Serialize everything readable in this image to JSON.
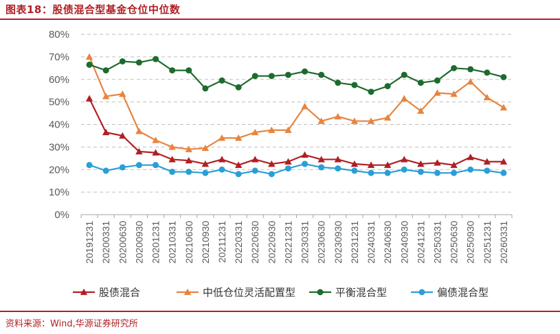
{
  "title": "图表18：股债混合型基金仓位中位数",
  "source": "资料来源：Wind,华源证券研究所",
  "chart_data": {
    "type": "line",
    "categories": [
      "20191231",
      "20200331",
      "20200630",
      "20200930",
      "20201231",
      "20210331",
      "20210630",
      "20210930",
      "20211231",
      "20220331",
      "20220630",
      "20220930",
      "20221231",
      "20230331",
      "20230630",
      "20230930",
      "20231231",
      "20240331",
      "20240630",
      "20240930",
      "20241231",
      "20250331",
      "20250630",
      "20250930",
      "20251231",
      "20260331"
    ],
    "ylim": [
      0,
      80
    ],
    "yticks": [
      "0%",
      "10%",
      "20%",
      "30%",
      "40%",
      "50%",
      "60%",
      "70%",
      "80%"
    ],
    "grid": true,
    "legend_position": "bottom",
    "series": [
      {
        "name": "股债混合",
        "color": "#b01f24",
        "marker": "triangle",
        "values": [
          51.5,
          36.5,
          35,
          28,
          27.5,
          24.5,
          24,
          22.5,
          24.5,
          22,
          24.5,
          22.5,
          23.5,
          26.5,
          24.5,
          24.5,
          22.5,
          22,
          22,
          24.5,
          22.5,
          23,
          22,
          25.5,
          23.5,
          23.5
        ]
      },
      {
        "name": "中低仓位灵活配置型",
        "color": "#e7843f",
        "marker": "triangle",
        "values": [
          70,
          52.5,
          53.5,
          37,
          33,
          30,
          29,
          29.5,
          34,
          34,
          36.5,
          37.5,
          37.5,
          48,
          41.5,
          43.5,
          41.5,
          41.5,
          43,
          51.5,
          46,
          54,
          53.5,
          59,
          52,
          47.5
        ]
      },
      {
        "name": "平衡混合型",
        "color": "#1d6b2f",
        "marker": "circle",
        "values": [
          66.5,
          64,
          68,
          67.5,
          69,
          64,
          64,
          56,
          59.5,
          56.5,
          61.5,
          61.5,
          62,
          63.5,
          62,
          58.5,
          57.5,
          54.5,
          57,
          62,
          58.5,
          59.5,
          65,
          64.5,
          63,
          61
        ]
      },
      {
        "name": "偏债混合型",
        "color": "#2a9fd6",
        "marker": "circle",
        "values": [
          22,
          19.5,
          21,
          22,
          22,
          19,
          19,
          18.5,
          20,
          18,
          19.5,
          18,
          20.5,
          22.5,
          21,
          20.5,
          19.5,
          18.5,
          18.5,
          20,
          19,
          18.5,
          18.5,
          20,
          19.5,
          18.5
        ]
      }
    ]
  }
}
